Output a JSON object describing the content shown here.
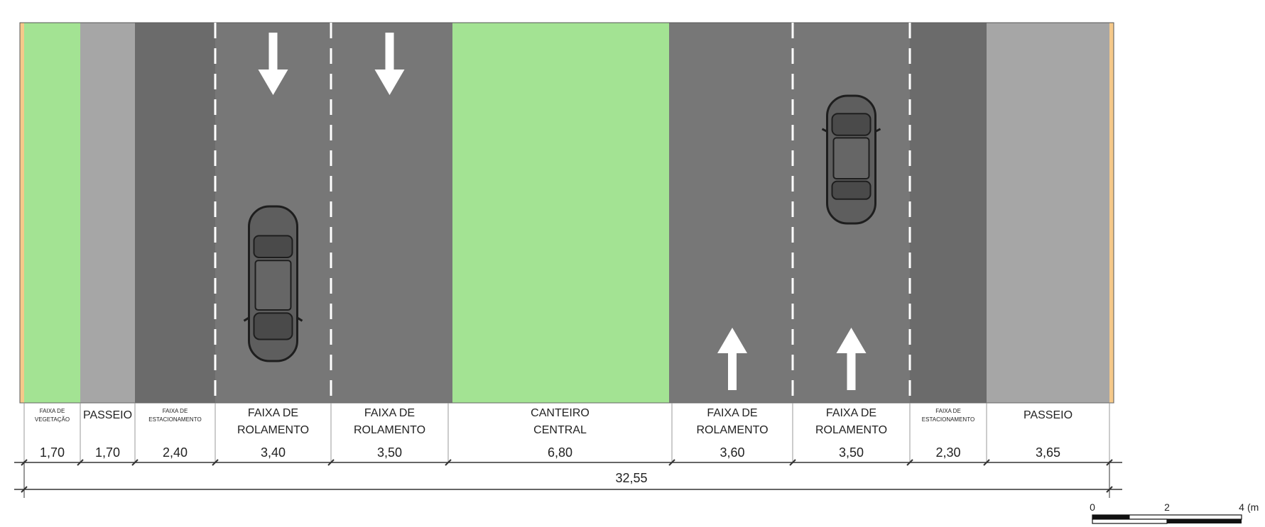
{
  "colors": {
    "vegetation": "#a3e393",
    "median": "#a3e393",
    "sidewalk": "#a6a6a6",
    "parking": "#6b6b6b",
    "lane": "#777777",
    "edge": "#f5c98a",
    "marking": "#ffffff",
    "dimension_line": "#333333"
  },
  "strips": [
    {
      "id": "vegetacao",
      "type": "vegetation",
      "label": [
        "FAIXA DE",
        "VEGETAÇÃO"
      ],
      "label_size": "tiny",
      "width": "1,70"
    },
    {
      "id": "passeio-left",
      "type": "sidewalk",
      "label": [
        "PASSEIO"
      ],
      "label_size": "med",
      "width": "1,70"
    },
    {
      "id": "estacionamento-left",
      "type": "parking",
      "label": [
        "FAIXA DE",
        "ESTACIONAMENTO"
      ],
      "label_size": "tiny",
      "width": "2,40"
    },
    {
      "id": "rolamento-1",
      "type": "lane",
      "label": [
        "FAIXA DE",
        "ROLAMENTO"
      ],
      "label_size": "med",
      "width": "3,40",
      "arrow": "down",
      "car": true
    },
    {
      "id": "rolamento-2",
      "type": "lane",
      "label": [
        "FAIXA DE",
        "ROLAMENTO"
      ],
      "label_size": "med",
      "width": "3,50",
      "arrow": "down"
    },
    {
      "id": "canteiro",
      "type": "median",
      "label": [
        "CANTEIRO",
        "CENTRAL"
      ],
      "label_size": "med",
      "width": "6,80"
    },
    {
      "id": "rolamento-3",
      "type": "lane",
      "label": [
        "FAIXA DE",
        "ROLAMENTO"
      ],
      "label_size": "med",
      "width": "3,60",
      "arrow": "up"
    },
    {
      "id": "rolamento-4",
      "type": "lane",
      "label": [
        "FAIXA DE",
        "ROLAMENTO"
      ],
      "label_size": "med",
      "width": "3,50",
      "arrow": "up",
      "car": true
    },
    {
      "id": "estacionamento-right",
      "type": "parking",
      "label": [
        "FAIXA DE",
        "ESTACIONAMENTO"
      ],
      "label_size": "tiny",
      "width": "2,30"
    },
    {
      "id": "passeio-right",
      "type": "sidewalk",
      "label": [
        "PASSEIO"
      ],
      "label_size": "med",
      "width": "3,65"
    }
  ],
  "total_width": "32,55",
  "scale_bar": {
    "ticks": [
      "0",
      "2",
      "4"
    ],
    "unit": "(m"
  }
}
